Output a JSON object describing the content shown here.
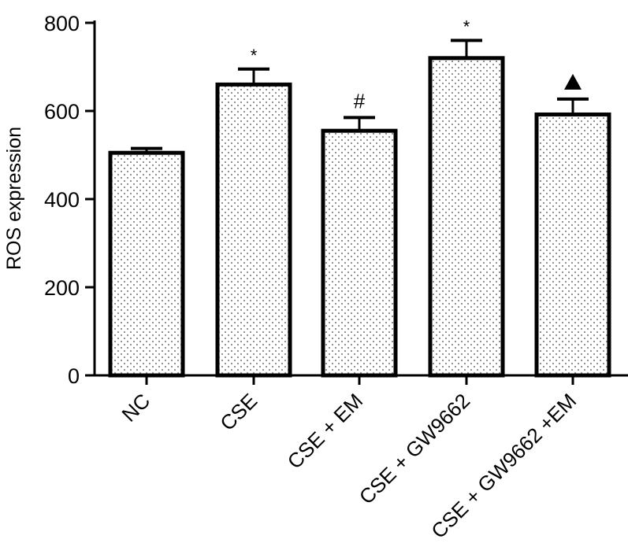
{
  "chart_data": {
    "type": "bar",
    "categories": [
      "NC",
      "CSE",
      "CSE + EM",
      "CSE + GW9662",
      "CSE + GW9662 +EM"
    ],
    "values": [
      505,
      660,
      555,
      720,
      592
    ],
    "errors": [
      10,
      35,
      30,
      40,
      35
    ],
    "annotations": [
      "",
      "*",
      "#",
      "*",
      "▲"
    ],
    "title": "",
    "xlabel": "",
    "ylabel": "ROS expression",
    "ylim": [
      0,
      800
    ],
    "yticks": [
      0,
      200,
      400,
      600,
      800
    ],
    "grid": false,
    "legend": "none",
    "bar_fill": "dotted",
    "colors": {
      "bar_edge": "#000000",
      "dot": "#888888",
      "background": "#ffffff"
    }
  }
}
